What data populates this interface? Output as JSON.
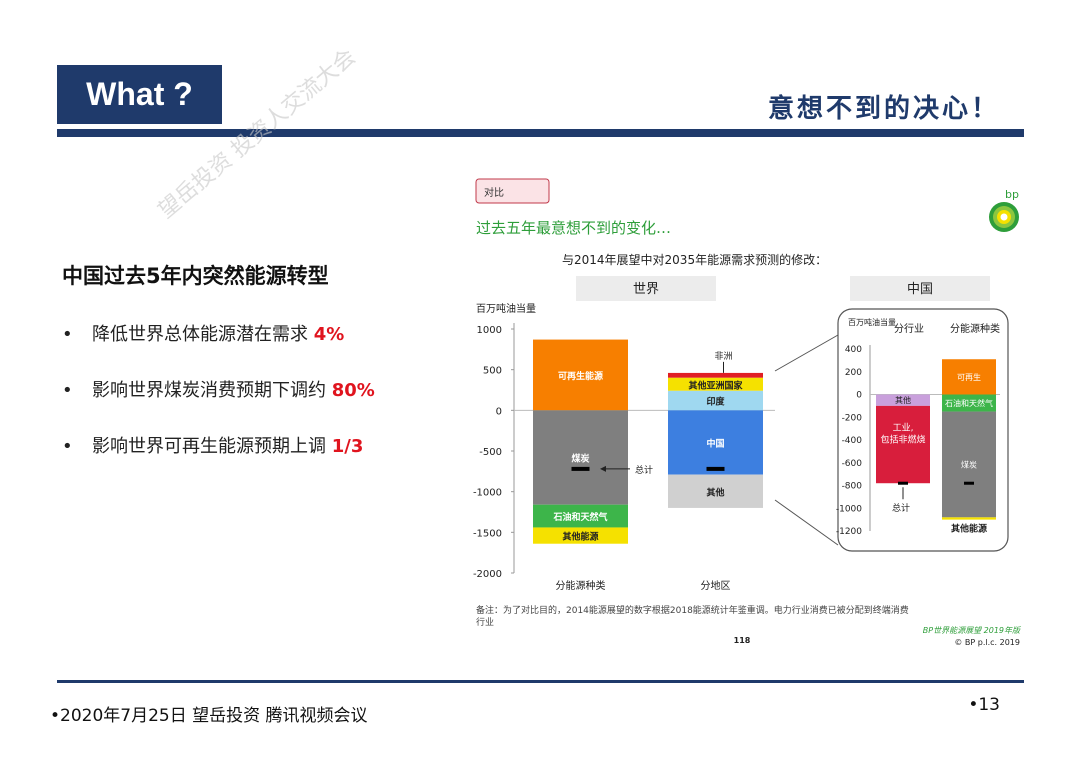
{
  "header": {
    "title": "What ?",
    "slogan": "意想不到的决心！"
  },
  "left": {
    "heading": "中国过去5年内突然能源转型",
    "bullets": [
      {
        "text": "降低世界总体能源潜在需求 ",
        "highlight": "4%"
      },
      {
        "text": "影响世界煤炭消费预期下调约 ",
        "highlight": "80%"
      },
      {
        "text": "影响世界可再生能源预期上调 ",
        "highlight": "1/3"
      }
    ]
  },
  "watermark": "望岳投资 投资人交流大会",
  "figure": {
    "tag": "对比",
    "logo_text": "bp",
    "headline": "过去五年最意想不到的变化…",
    "subtitle": "与2014年展望中对2035年能源需求预测的修改：",
    "panel_world": "世界",
    "panel_china": "中国",
    "note": "备注：为了对比目的，2014能源展望的数字根据2018能源统计年鉴重调。电力行业消费已被分配到终端消费行业",
    "source": "BP世界能源展望 2019年版",
    "copyright": "© BP p.l.c. 2019",
    "page": "118"
  },
  "chart_data": [
    {
      "type": "bar",
      "ylabel": "百万吨油当量",
      "ylim": [
        -2000,
        1000
      ],
      "yticks": [
        "1000",
        "500",
        "0",
        "-500",
        "-1000",
        "-1500",
        "-2000"
      ],
      "categories": [
        "分能源种类",
        "分地区"
      ],
      "series": [
        {
          "name": "可再生能源",
          "category": "分能源种类",
          "from": 0,
          "to": 870,
          "color": "#f77f00"
        },
        {
          "name": "煤炭",
          "category": "分能源种类",
          "from": 0,
          "to": -1160,
          "color": "#7f7f7f"
        },
        {
          "name": "石油和天然气",
          "category": "分能源种类",
          "from": -1160,
          "to": -1440,
          "color": "#3db54a"
        },
        {
          "name": "其他能源",
          "category": "分能源种类",
          "from": -1440,
          "to": -1640,
          "color": "#f5e100"
        },
        {
          "name": "非洲",
          "category": "分地区",
          "from": 400,
          "to": 460,
          "color": "#e01e24"
        },
        {
          "name": "其他亚洲国家",
          "category": "分地区",
          "from": 240,
          "to": 400,
          "color": "#f5e100"
        },
        {
          "name": "印度",
          "category": "分地区",
          "from": 0,
          "to": 240,
          "color": "#9fd8f0"
        },
        {
          "name": "中国",
          "category": "分地区",
          "from": 0,
          "to": -790,
          "color": "#3d7fe0"
        },
        {
          "name": "其他",
          "category": "分地区",
          "from": -790,
          "to": -1200,
          "color": "#d0d0d0"
        }
      ],
      "total_label": "总计",
      "total": -720
    },
    {
      "type": "bar",
      "ylabel": "百万吨油当量",
      "ylim": [
        -1200,
        400
      ],
      "yticks": [
        "400",
        "200",
        "0",
        "-200",
        "-400",
        "-600",
        "-800",
        "-1000",
        "-1200"
      ],
      "categories": [
        "分行业",
        "分能源种类"
      ],
      "series": [
        {
          "name": "其他",
          "category": "分行业",
          "from": 0,
          "to": -100,
          "color": "#c9a0dc"
        },
        {
          "name": "工业, 包括非燃烧",
          "category": "分行业",
          "from": -100,
          "to": -780,
          "color": "#d81e3c"
        },
        {
          "name": "可再生",
          "category": "分能源种类",
          "from": 0,
          "to": 310,
          "color": "#f77f00"
        },
        {
          "name": "石油和天然气",
          "category": "分能源种类",
          "from": 0,
          "to": -150,
          "color": "#3db54a"
        },
        {
          "name": "煤炭",
          "category": "分能源种类",
          "from": -150,
          "to": -1080,
          "color": "#7f7f7f"
        },
        {
          "name": "其他能源",
          "category": "分能源种类",
          "from": -1080,
          "to": -1100,
          "color": "#f5e100"
        }
      ],
      "total_label": "总计",
      "total": -780
    }
  ],
  "footer": {
    "left": "•2020年7月25日 望岳投资 腾讯视频会议",
    "page": "•13"
  },
  "colors": {
    "navy": "#1f3a6b",
    "highlight": "#e0141e",
    "green_head": "#2e9e3a"
  }
}
